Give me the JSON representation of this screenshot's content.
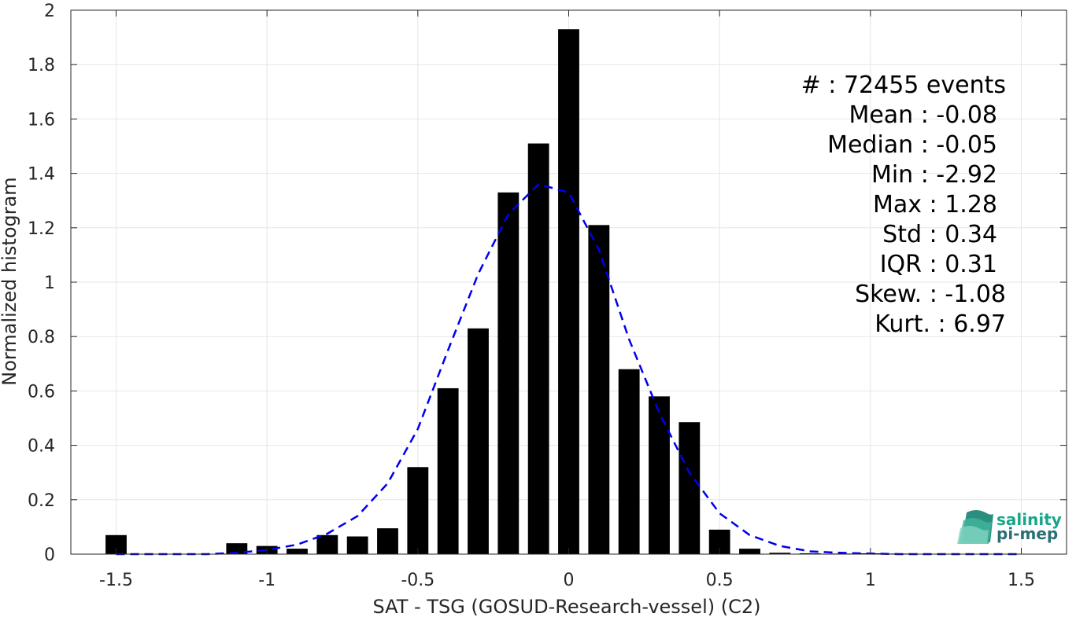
{
  "chart_data": {
    "type": "bar",
    "xlabel": "SAT - TSG (GOSUD-Research-vessel) (C2)",
    "ylabel": "Normalized histogram",
    "xlim": [
      -1.65,
      1.65
    ],
    "ylim": [
      0,
      2
    ],
    "grid": true,
    "x_ticks": [
      "-1.5",
      "-1",
      "-0.5",
      "0",
      "0.5",
      "1",
      "1.5"
    ],
    "x_tick_values": [
      -1.5,
      -1,
      -0.5,
      0,
      0.5,
      1,
      1.5
    ],
    "y_ticks": [
      "0",
      "0.2",
      "0.4",
      "0.6",
      "0.8",
      "1",
      "1.2",
      "1.4",
      "1.6",
      "1.8",
      "2"
    ],
    "y_tick_values": [
      0,
      0.2,
      0.4,
      0.6,
      0.8,
      1,
      1.2,
      1.4,
      1.6,
      1.8,
      2
    ],
    "bar_width": 0.07,
    "bars": {
      "color": "#000000",
      "x": [
        -1.5,
        -1.1,
        -1.0,
        -0.9,
        -0.8,
        -0.7,
        -0.6,
        -0.5,
        -0.4,
        -0.3,
        -0.2,
        -0.1,
        0.0,
        0.1,
        0.2,
        0.3,
        0.4,
        0.5,
        0.6,
        0.7,
        0.8,
        0.9,
        1.0,
        1.1
      ],
      "values": [
        0.07,
        0.04,
        0.03,
        0.02,
        0.07,
        0.065,
        0.095,
        0.32,
        0.61,
        0.83,
        1.33,
        1.51,
        1.93,
        1.21,
        0.68,
        0.58,
        0.485,
        0.09,
        0.02,
        0.005,
        0.003,
        0.002,
        0.003,
        0.002
      ]
    },
    "fit_curve": {
      "style": "dashed",
      "color": "#0000ee",
      "x": [
        -1.5,
        -1.4,
        -1.3,
        -1.2,
        -1.1,
        -1.0,
        -0.9,
        -0.8,
        -0.7,
        -0.6,
        -0.5,
        -0.4,
        -0.3,
        -0.2,
        -0.1,
        0.0,
        0.1,
        0.2,
        0.3,
        0.4,
        0.5,
        0.6,
        0.7,
        0.8,
        0.9,
        1.0,
        1.1,
        1.2,
        1.3,
        1.4,
        1.5
      ],
      "values": [
        0.0,
        0.0,
        0.0,
        0.0,
        0.005,
        0.015,
        0.035,
        0.075,
        0.14,
        0.26,
        0.46,
        0.75,
        1.03,
        1.25,
        1.36,
        1.33,
        1.12,
        0.79,
        0.52,
        0.3,
        0.15,
        0.07,
        0.03,
        0.01,
        0.005,
        0.002,
        0.0,
        0.0,
        0.0,
        0.0,
        0.0
      ]
    }
  },
  "stats": {
    "lines": [
      "#  : 72455 events",
      "Mean : -0.08",
      "Median : -0.05",
      "Min : -2.92",
      "Max : 1.28",
      "Std : 0.34",
      "IQR : 0.31",
      "Skew. : -1.08",
      "Kurt. : 6.97"
    ]
  },
  "logo": {
    "line1": "salinity",
    "line2": "pi-mep",
    "color": "#1aa58a"
  }
}
